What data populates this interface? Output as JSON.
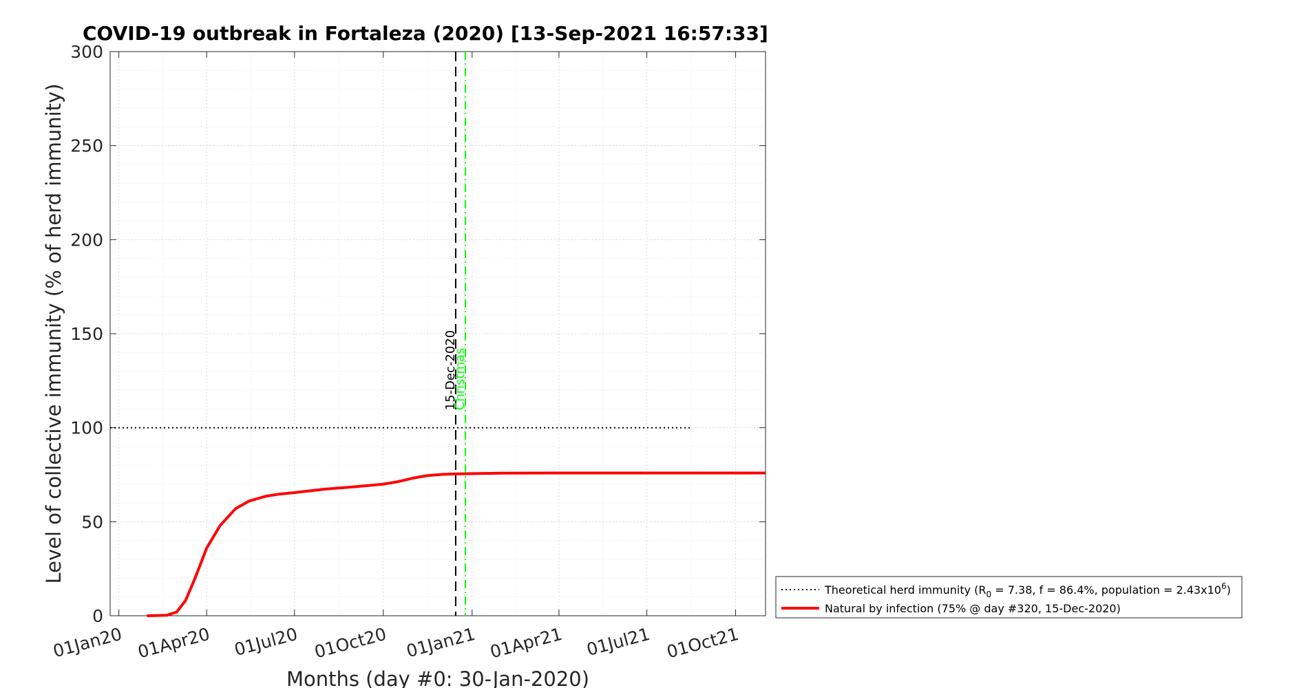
{
  "chart_data": {
    "type": "line",
    "title": "COVID-19 outbreak in Fortaleza (2020) [13-Sep-2021 16:57:33]",
    "xlabel": "Months (day #0: 30-Jan-2020)",
    "ylabel": "Level of collective immunity (% of herd immunity)",
    "x_tick_labels": [
      "01Jan20",
      "01Apr20",
      "01Jul20",
      "01Oct20",
      "01Jan21",
      "01Apr21",
      "01Jul21",
      "01Oct21"
    ],
    "x_ticks": [
      "2020-01-01",
      "2020-04-01",
      "2020-07-01",
      "2020-10-01",
      "2021-01-01",
      "2021-04-01",
      "2021-07-01",
      "2021-10-01"
    ],
    "xlim": [
      "2019-12-23",
      "2021-11-01"
    ],
    "y_ticks": [
      0,
      50,
      100,
      150,
      200,
      250,
      300
    ],
    "ylim": [
      0,
      300
    ],
    "grid": true,
    "minor_grid": true,
    "legend_position": "outside-right-bottom",
    "series": [
      {
        "name": "Theoretical herd immunity",
        "legend_parts": [
          "Theoretical herd immunity (R",
          "0",
          " = 7.38, f = 86.4%, population = 2.43x10",
          "6",
          ")"
        ],
        "style": "dotted",
        "color": "#000000",
        "x": [
          "2019-12-23",
          "2021-08-15"
        ],
        "y": [
          100,
          100
        ]
      },
      {
        "name": "Natural by infection (75% @ day #320, 15-Dec-2020)",
        "style": "solid",
        "color": "#ff0000",
        "x": [
          "2020-01-30",
          "2020-02-20",
          "2020-03-01",
          "2020-03-10",
          "2020-03-20",
          "2020-04-01",
          "2020-04-15",
          "2020-05-01",
          "2020-05-15",
          "2020-06-01",
          "2020-06-15",
          "2020-07-01",
          "2020-08-01",
          "2020-09-01",
          "2020-10-01",
          "2020-10-15",
          "2020-11-01",
          "2020-11-15",
          "2020-12-01",
          "2020-12-15",
          "2021-01-01",
          "2021-02-01",
          "2021-04-01",
          "2021-07-01",
          "2021-11-01"
        ],
        "y": [
          0,
          0.3,
          2,
          8,
          20,
          36,
          48,
          57,
          61,
          63.5,
          64.7,
          65.5,
          67.3,
          68.6,
          70,
          71.2,
          73.2,
          74.5,
          75.2,
          75.4,
          75.6,
          75.8,
          75.9,
          75.9,
          75.9
        ]
      }
    ],
    "vlines": [
      {
        "label": "15-Dec-2020",
        "x": "2020-12-15",
        "style": "dashed",
        "color": "#000000"
      },
      {
        "label": "Christmas",
        "x": "2020-12-25",
        "style": "dashdot",
        "color": "#00ff00"
      }
    ]
  }
}
